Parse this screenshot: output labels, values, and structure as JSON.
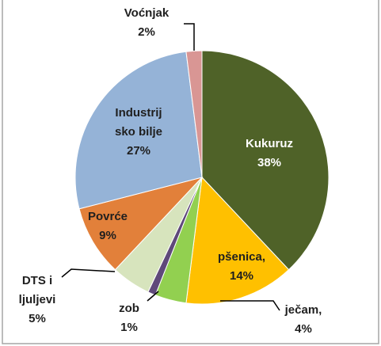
{
  "chart_data": {
    "type": "pie",
    "categories": [
      [
        "Kukuruz"
      ],
      [
        "pšenica,"
      ],
      [
        "ječam,"
      ],
      [
        "zob"
      ],
      [
        "DTS i",
        "ljuljevi"
      ],
      [
        "Povrće"
      ],
      [
        "Industrij",
        "sko bilje"
      ],
      [
        "Voćnjak"
      ]
    ],
    "values": [
      38,
      14,
      4,
      1,
      5,
      9,
      27,
      2
    ],
    "value_labels": [
      "38%",
      "14%",
      "4%",
      "1%",
      "5%",
      "9%",
      "27%",
      "2%"
    ],
    "colors": [
      "#4f6228",
      "#ffc000",
      "#92d050",
      "#5f497a",
      "#d7e4bd",
      "#e2803a",
      "#95b3d7",
      "#d99694"
    ]
  }
}
